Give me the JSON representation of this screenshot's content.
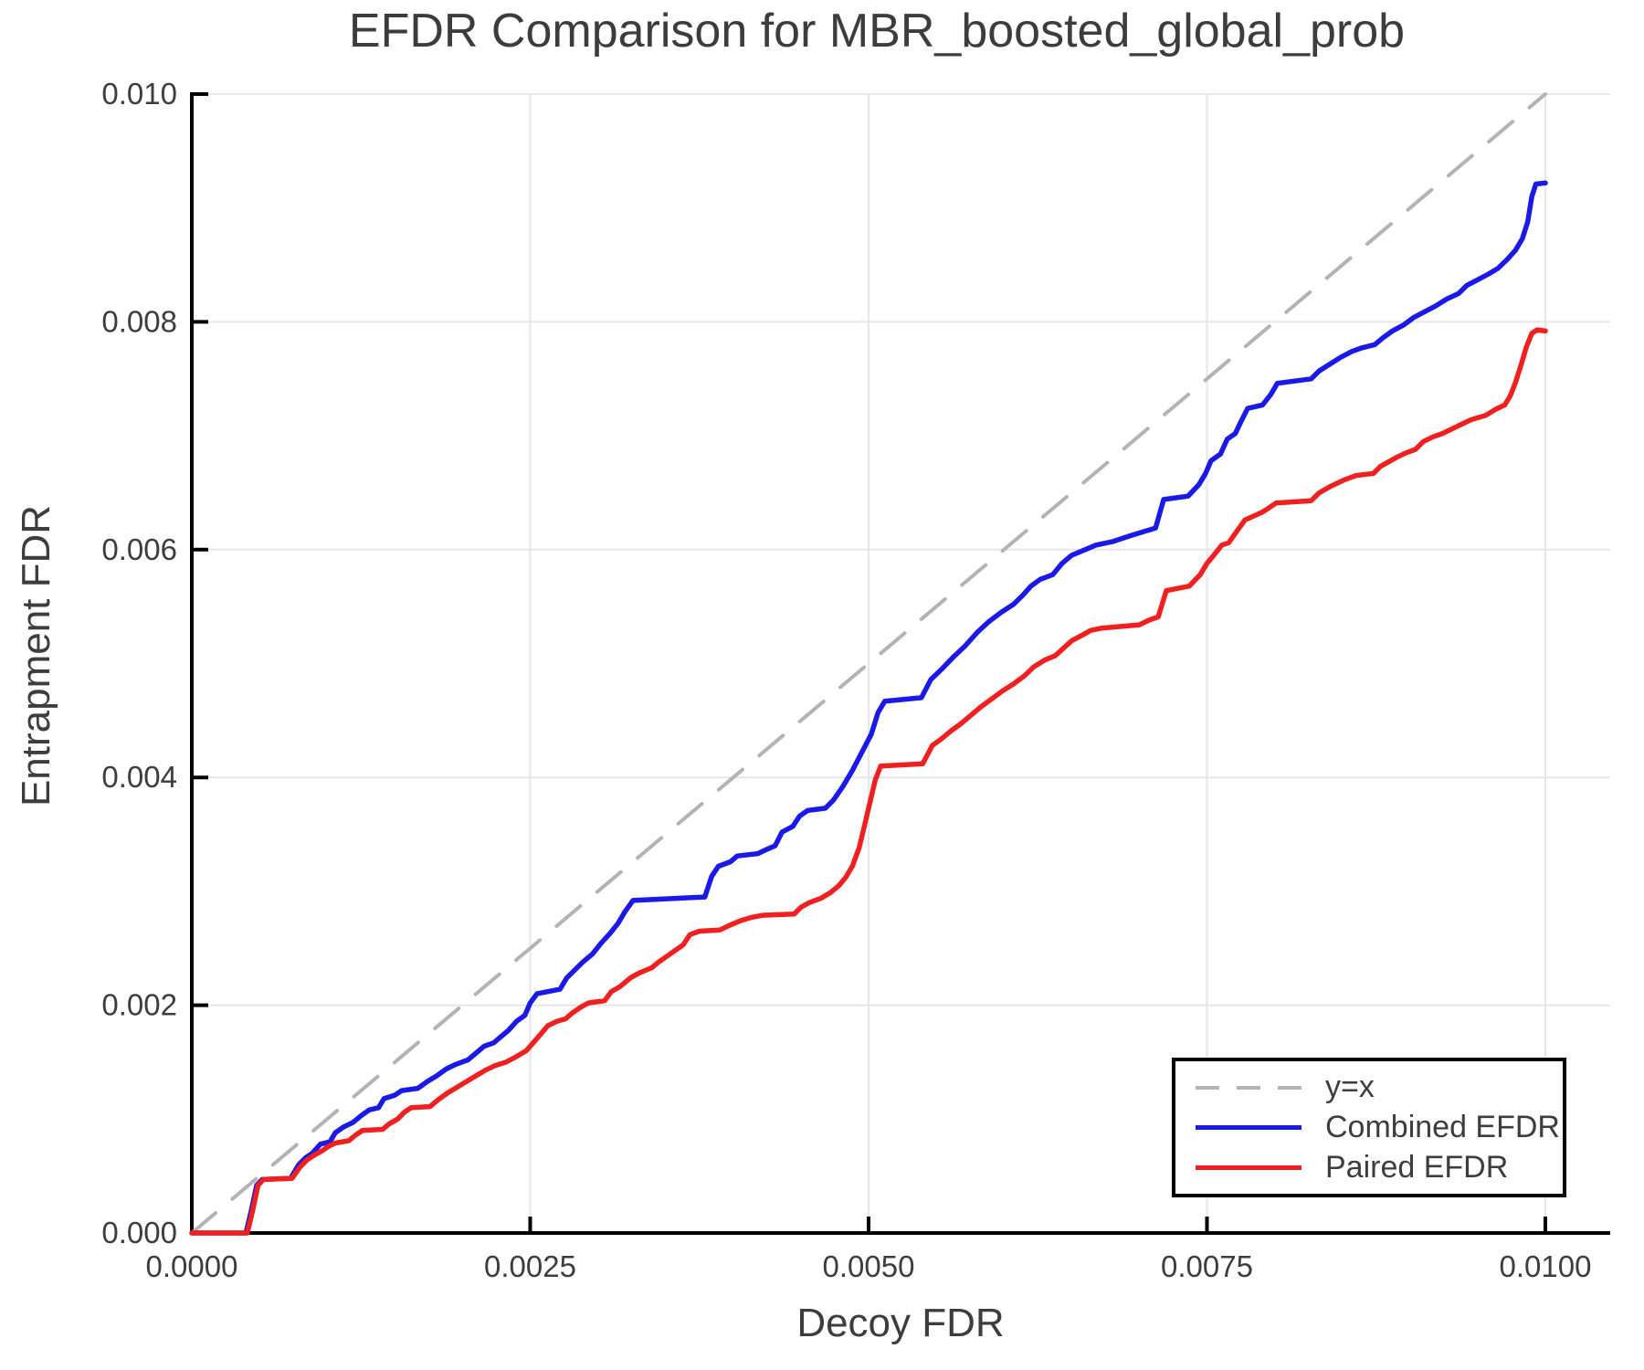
{
  "title": "EFDR Comparison for MBR_boosted_global_prob",
  "colors": {
    "combined": "#1A1AE8",
    "paired": "#F02020",
    "identity": "#B3B3B3",
    "grid": "#E6E6E6",
    "axis": "#000000",
    "text": "#3D3D3D"
  },
  "legend": {
    "items": [
      {
        "label": "y=x",
        "style": "dashed",
        "color": "#B3B3B3"
      },
      {
        "label": "Combined EFDR",
        "style": "solid",
        "color": "#1A1AE8"
      },
      {
        "label": "Paired EFDR",
        "style": "solid",
        "color": "#F02020"
      }
    ]
  },
  "chart_data": {
    "type": "line",
    "title": "EFDR Comparison for MBR_boosted_global_prob",
    "xlabel": "Decoy FDR",
    "ylabel": "Entrapment FDR",
    "xlim": [
      0,
      0.01048
    ],
    "ylim": [
      0,
      0.01
    ],
    "grid": true,
    "legend_position": "lower right",
    "x_tick_values": [
      0,
      0.0025,
      0.005,
      0.0075,
      0.01
    ],
    "x_tick_labels": [
      "0.0000",
      "0.0025",
      "0.0050",
      "0.0075",
      "0.0100"
    ],
    "y_tick_values": [
      0,
      0.002,
      0.004,
      0.006,
      0.008,
      0.01
    ],
    "y_tick_labels": [
      "0.000",
      "0.002",
      "0.004",
      "0.006",
      "0.008",
      "0.010"
    ],
    "series": [
      {
        "name": "y=x",
        "style": "dashed",
        "color": "#B3B3B3",
        "points": [
          [
            0,
            0
          ],
          [
            0.01,
            0.01
          ]
        ]
      },
      {
        "name": "Combined EFDR",
        "style": "solid",
        "color": "#1A1AE8",
        "points": [
          [
            0,
            0
          ],
          [
            0.0004,
            0
          ],
          [
            0.00044,
            0.0002
          ],
          [
            0.00048,
            0.00042
          ],
          [
            0.00052,
            0.00047
          ],
          [
            0.00073,
            0.00048
          ],
          [
            0.00079,
            0.0006
          ],
          [
            0.00084,
            0.00066
          ],
          [
            0.00089,
            0.0007
          ],
          [
            0.00095,
            0.00078
          ],
          [
            0.00102,
            0.0008
          ],
          [
            0.00106,
            0.00088
          ],
          [
            0.00112,
            0.00093
          ],
          [
            0.00119,
            0.00097
          ],
          [
            0.00125,
            0.00103
          ],
          [
            0.00131,
            0.00108
          ],
          [
            0.00138,
            0.0011
          ],
          [
            0.00142,
            0.00118
          ],
          [
            0.0015,
            0.00121
          ],
          [
            0.00155,
            0.00125
          ],
          [
            0.00167,
            0.00127
          ],
          [
            0.00174,
            0.00133
          ],
          [
            0.00181,
            0.00138
          ],
          [
            0.00188,
            0.00144
          ],
          [
            0.00195,
            0.00148
          ],
          [
            0.00204,
            0.00152
          ],
          [
            0.0021,
            0.00158
          ],
          [
            0.00216,
            0.00164
          ],
          [
            0.00223,
            0.00167
          ],
          [
            0.00228,
            0.00172
          ],
          [
            0.00234,
            0.00178
          ],
          [
            0.0024,
            0.00186
          ],
          [
            0.00246,
            0.00191
          ],
          [
            0.0025,
            0.00202
          ],
          [
            0.00255,
            0.0021
          ],
          [
            0.00272,
            0.00214
          ],
          [
            0.00277,
            0.00224
          ],
          [
            0.00283,
            0.00231
          ],
          [
            0.00289,
            0.00238
          ],
          [
            0.00296,
            0.00245
          ],
          [
            0.00302,
            0.00254
          ],
          [
            0.00309,
            0.00263
          ],
          [
            0.00315,
            0.00272
          ],
          [
            0.0032,
            0.00282
          ],
          [
            0.00326,
            0.00292
          ],
          [
            0.00379,
            0.00295
          ],
          [
            0.00384,
            0.00313
          ],
          [
            0.00389,
            0.00322
          ],
          [
            0.00398,
            0.00326
          ],
          [
            0.00403,
            0.00331
          ],
          [
            0.00418,
            0.00333
          ],
          [
            0.00425,
            0.00337
          ],
          [
            0.00431,
            0.0034
          ],
          [
            0.00436,
            0.00352
          ],
          [
            0.00444,
            0.00357
          ],
          [
            0.00449,
            0.00366
          ],
          [
            0.00455,
            0.00371
          ],
          [
            0.00468,
            0.00373
          ],
          [
            0.00474,
            0.0038
          ],
          [
            0.00481,
            0.00392
          ],
          [
            0.00488,
            0.00406
          ],
          [
            0.00495,
            0.00422
          ],
          [
            0.00502,
            0.00438
          ],
          [
            0.00507,
            0.00457
          ],
          [
            0.00512,
            0.00467
          ],
          [
            0.00539,
            0.0047
          ],
          [
            0.00546,
            0.00486
          ],
          [
            0.00554,
            0.00495
          ],
          [
            0.00562,
            0.00505
          ],
          [
            0.00571,
            0.00515
          ],
          [
            0.0058,
            0.00527
          ],
          [
            0.00589,
            0.00537
          ],
          [
            0.00598,
            0.00545
          ],
          [
            0.00607,
            0.00552
          ],
          [
            0.00614,
            0.0056
          ],
          [
            0.0062,
            0.00568
          ],
          [
            0.00627,
            0.00574
          ],
          [
            0.00636,
            0.00578
          ],
          [
            0.00643,
            0.00588
          ],
          [
            0.0065,
            0.00595
          ],
          [
            0.0066,
            0.006
          ],
          [
            0.00668,
            0.00604
          ],
          [
            0.0068,
            0.00607
          ],
          [
            0.00693,
            0.00612
          ],
          [
            0.00704,
            0.00616
          ],
          [
            0.00712,
            0.00619
          ],
          [
            0.00718,
            0.00644
          ],
          [
            0.00736,
            0.00647
          ],
          [
            0.00744,
            0.00657
          ],
          [
            0.00749,
            0.00667
          ],
          [
            0.00753,
            0.00678
          ],
          [
            0.0076,
            0.00684
          ],
          [
            0.00765,
            0.00697
          ],
          [
            0.00771,
            0.00702
          ],
          [
            0.00775,
            0.00712
          ],
          [
            0.0078,
            0.00724
          ],
          [
            0.00791,
            0.00727
          ],
          [
            0.00797,
            0.00736
          ],
          [
            0.00802,
            0.00746
          ],
          [
            0.00827,
            0.0075
          ],
          [
            0.00833,
            0.00757
          ],
          [
            0.00841,
            0.00763
          ],
          [
            0.00849,
            0.00769
          ],
          [
            0.00857,
            0.00774
          ],
          [
            0.00864,
            0.00777
          ],
          [
            0.00874,
            0.0078
          ],
          [
            0.0088,
            0.00786
          ],
          [
            0.00887,
            0.00792
          ],
          [
            0.00895,
            0.00797
          ],
          [
            0.00903,
            0.00804
          ],
          [
            0.00911,
            0.00809
          ],
          [
            0.00919,
            0.00814
          ],
          [
            0.00927,
            0.0082
          ],
          [
            0.00936,
            0.00825
          ],
          [
            0.00942,
            0.00832
          ],
          [
            0.0095,
            0.00837
          ],
          [
            0.00958,
            0.00842
          ],
          [
            0.00965,
            0.00847
          ],
          [
            0.00972,
            0.00855
          ],
          [
            0.00978,
            0.00863
          ],
          [
            0.00983,
            0.00873
          ],
          [
            0.00987,
            0.00888
          ],
          [
            0.0099,
            0.0091
          ],
          [
            0.00993,
            0.00921
          ],
          [
            0.01,
            0.00922
          ]
        ]
      },
      {
        "name": "Paired EFDR",
        "style": "solid",
        "color": "#F02020",
        "points": [
          [
            0,
            0
          ],
          [
            0.00041,
            0
          ],
          [
            0.00045,
            0.0002
          ],
          [
            0.00049,
            0.00042
          ],
          [
            0.00053,
            0.00047
          ],
          [
            0.00074,
            0.00048
          ],
          [
            0.0008,
            0.00058
          ],
          [
            0.00085,
            0.00064
          ],
          [
            0.0009,
            0.00068
          ],
          [
            0.00096,
            0.00072
          ],
          [
            0.00101,
            0.00076
          ],
          [
            0.00106,
            0.00079
          ],
          [
            0.00116,
            0.00081
          ],
          [
            0.00121,
            0.00086
          ],
          [
            0.00126,
            0.0009
          ],
          [
            0.00141,
            0.00091
          ],
          [
            0.00146,
            0.00096
          ],
          [
            0.00152,
            0.001
          ],
          [
            0.00157,
            0.00106
          ],
          [
            0.00162,
            0.0011
          ],
          [
            0.00176,
            0.00111
          ],
          [
            0.00182,
            0.00117
          ],
          [
            0.00189,
            0.00123
          ],
          [
            0.00196,
            0.00128
          ],
          [
            0.00203,
            0.00133
          ],
          [
            0.0021,
            0.00138
          ],
          [
            0.00217,
            0.00143
          ],
          [
            0.00224,
            0.00147
          ],
          [
            0.00232,
            0.0015
          ],
          [
            0.0024,
            0.00155
          ],
          [
            0.00247,
            0.0016
          ],
          [
            0.00253,
            0.00168
          ],
          [
            0.00258,
            0.00175
          ],
          [
            0.00263,
            0.00182
          ],
          [
            0.0027,
            0.00186
          ],
          [
            0.00276,
            0.00188
          ],
          [
            0.00281,
            0.00193
          ],
          [
            0.00287,
            0.00198
          ],
          [
            0.00293,
            0.00202
          ],
          [
            0.00305,
            0.00204
          ],
          [
            0.0031,
            0.00212
          ],
          [
            0.00316,
            0.00216
          ],
          [
            0.00324,
            0.00224
          ],
          [
            0.0033,
            0.00228
          ],
          [
            0.0034,
            0.00233
          ],
          [
            0.00345,
            0.00238
          ],
          [
            0.00351,
            0.00243
          ],
          [
            0.00357,
            0.00248
          ],
          [
            0.00363,
            0.00253
          ],
          [
            0.00368,
            0.00262
          ],
          [
            0.00375,
            0.00265
          ],
          [
            0.0039,
            0.00266
          ],
          [
            0.00397,
            0.0027
          ],
          [
            0.00405,
            0.00274
          ],
          [
            0.00413,
            0.00277
          ],
          [
            0.00422,
            0.00279
          ],
          [
            0.00445,
            0.0028
          ],
          [
            0.0045,
            0.00286
          ],
          [
            0.00456,
            0.0029
          ],
          [
            0.00465,
            0.00294
          ],
          [
            0.00472,
            0.00299
          ],
          [
            0.00478,
            0.00305
          ],
          [
            0.00483,
            0.00312
          ],
          [
            0.00488,
            0.00322
          ],
          [
            0.00493,
            0.00338
          ],
          [
            0.00497,
            0.00358
          ],
          [
            0.00501,
            0.00378
          ],
          [
            0.00505,
            0.00398
          ],
          [
            0.00509,
            0.0041
          ],
          [
            0.0054,
            0.00412
          ],
          [
            0.00547,
            0.00428
          ],
          [
            0.00554,
            0.00434
          ],
          [
            0.00561,
            0.00441
          ],
          [
            0.00568,
            0.00447
          ],
          [
            0.00575,
            0.00454
          ],
          [
            0.00583,
            0.00462
          ],
          [
            0.00591,
            0.00469
          ],
          [
            0.00599,
            0.00476
          ],
          [
            0.00607,
            0.00482
          ],
          [
            0.00615,
            0.00489
          ],
          [
            0.00622,
            0.00497
          ],
          [
            0.0063,
            0.00503
          ],
          [
            0.00638,
            0.00507
          ],
          [
            0.0065,
            0.0052
          ],
          [
            0.00658,
            0.00525
          ],
          [
            0.00664,
            0.00529
          ],
          [
            0.00672,
            0.00531
          ],
          [
            0.007,
            0.00534
          ],
          [
            0.00707,
            0.00538
          ],
          [
            0.00714,
            0.00541
          ],
          [
            0.0072,
            0.00564
          ],
          [
            0.00737,
            0.00568
          ],
          [
            0.00745,
            0.00578
          ],
          [
            0.0075,
            0.00588
          ],
          [
            0.00755,
            0.00595
          ],
          [
            0.00761,
            0.00604
          ],
          [
            0.00766,
            0.00606
          ],
          [
            0.00772,
            0.00616
          ],
          [
            0.00778,
            0.00626
          ],
          [
            0.00791,
            0.00633
          ],
          [
            0.00795,
            0.00636
          ],
          [
            0.00801,
            0.00641
          ],
          [
            0.00827,
            0.00643
          ],
          [
            0.00833,
            0.0065
          ],
          [
            0.00842,
            0.00656
          ],
          [
            0.00851,
            0.00661
          ],
          [
            0.0086,
            0.00665
          ],
          [
            0.00873,
            0.00667
          ],
          [
            0.00878,
            0.00673
          ],
          [
            0.00884,
            0.00677
          ],
          [
            0.0089,
            0.00681
          ],
          [
            0.00897,
            0.00685
          ],
          [
            0.00904,
            0.00688
          ],
          [
            0.0091,
            0.00695
          ],
          [
            0.00917,
            0.00699
          ],
          [
            0.00924,
            0.00702
          ],
          [
            0.00931,
            0.00706
          ],
          [
            0.00938,
            0.0071
          ],
          [
            0.00945,
            0.00714
          ],
          [
            0.00956,
            0.00718
          ],
          [
            0.00963,
            0.00723
          ],
          [
            0.0097,
            0.00727
          ],
          [
            0.00974,
            0.00735
          ],
          [
            0.00978,
            0.00747
          ],
          [
            0.00982,
            0.00762
          ],
          [
            0.00986,
            0.00778
          ],
          [
            0.0099,
            0.0079
          ],
          [
            0.00994,
            0.00793
          ],
          [
            0.01,
            0.00792
          ]
        ]
      }
    ]
  }
}
